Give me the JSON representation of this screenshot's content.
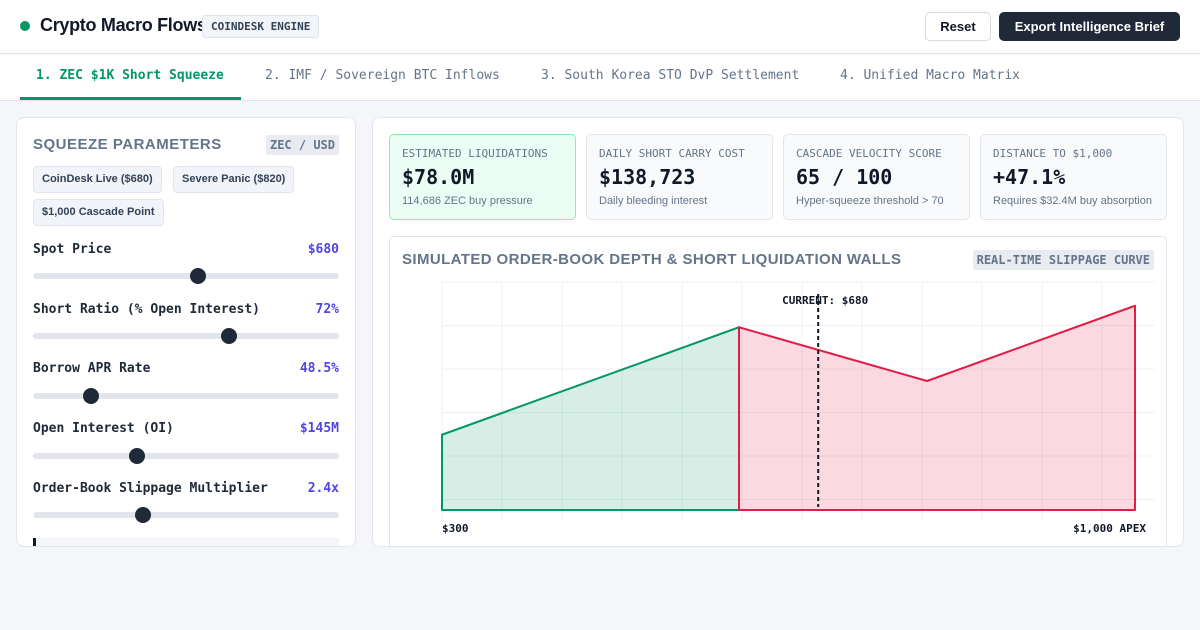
{
  "app": {
    "title": "Crypto Macro Flows",
    "engine_badge": "COINDESK ENGINE",
    "reset_label": "Reset",
    "export_label": "Export Intelligence Brief",
    "accent": "#059669"
  },
  "tabs": [
    {
      "label": "1. ZEC $1K Short Squeeze",
      "active": true
    },
    {
      "label": "2. IMF / Sovereign BTC Inflows",
      "active": false
    },
    {
      "label": "3. South Korea STO DvP Settlement",
      "active": false
    },
    {
      "label": "4. Unified Macro Matrix",
      "active": false
    }
  ],
  "params_panel": {
    "title": "SQUEEZE PARAMETERS",
    "pair": "ZEC / USD",
    "presets": [
      "CoinDesk Live ($680)",
      "Severe Panic ($820)",
      "$1,000 Cascade Point"
    ],
    "params": [
      {
        "label": "Spot Price",
        "value": "$680",
        "fraction": 0.54
      },
      {
        "label": "Short Ratio (% Open Interest)",
        "value": "72%",
        "fraction": 0.64
      },
      {
        "label": "Borrow APR Rate",
        "value": "48.5%",
        "fraction": 0.19
      },
      {
        "label": "Open Interest (OI)",
        "value": "$145M",
        "fraction": 0.34
      },
      {
        "label": "Order-Book Slippage Multiplier",
        "value": "2.4x",
        "fraction": 0.36
      }
    ]
  },
  "kpis": [
    {
      "label": "ESTIMATED LIQUIDATIONS",
      "value": "$78.0M",
      "sub": "114,686 ZEC buy pressure",
      "highlight": true
    },
    {
      "label": "DAILY SHORT CARRY COST",
      "value": "$138,723",
      "sub": "Daily bleeding interest",
      "highlight": false
    },
    {
      "label": "CASCADE VELOCITY SCORE",
      "value": "65 / 100",
      "sub": "Hyper-squeeze threshold > 70",
      "highlight": false
    },
    {
      "label": "DISTANCE TO $1,000",
      "value": "+47.1%",
      "sub": "Requires $32.4M buy absorption",
      "highlight": false
    }
  ],
  "chart": {
    "title": "SIMULATED ORDER-BOOK DEPTH & SHORT LIQUIDATION WALLS",
    "badge": "REAL-TIME SLIPPAGE CURVE",
    "marker_label": "CURRENT: $680",
    "x_start_label": "$300",
    "x_end_label": "$1,000 APEX",
    "bid_color": "#059669",
    "ask_color": "#e11d48"
  },
  "chart_data": {
    "type": "area",
    "xlim": [
      300,
      1000
    ],
    "ylim": [
      0,
      1
    ],
    "current_price": 680,
    "series": [
      {
        "x": [
          300,
          300,
          600,
          600
        ],
        "y": [
          0,
          0.35,
          0.85,
          0
        ]
      },
      {
        "x": [
          600,
          600,
          790,
          1000,
          1000
        ],
        "y": [
          0,
          0.85,
          0.6,
          0.95,
          0
        ]
      }
    ]
  }
}
